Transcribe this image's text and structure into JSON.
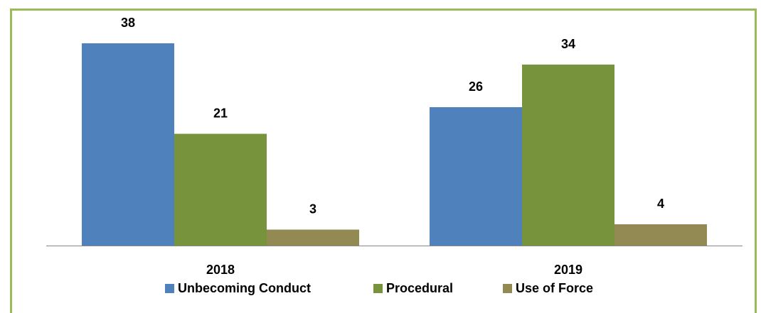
{
  "chart_data": {
    "type": "bar",
    "categories": [
      "2018",
      "2019"
    ],
    "series": [
      {
        "name": "Unbecoming Conduct",
        "color": "#4f81bd",
        "values": [
          38,
          26
        ]
      },
      {
        "name": "Procedural",
        "color": "#77933c",
        "values": [
          21,
          34
        ]
      },
      {
        "name": "Use of Force",
        "color": "#938953",
        "values": [
          3,
          4
        ]
      }
    ],
    "ylim": [
      0,
      40
    ],
    "legend": "bottom"
  }
}
